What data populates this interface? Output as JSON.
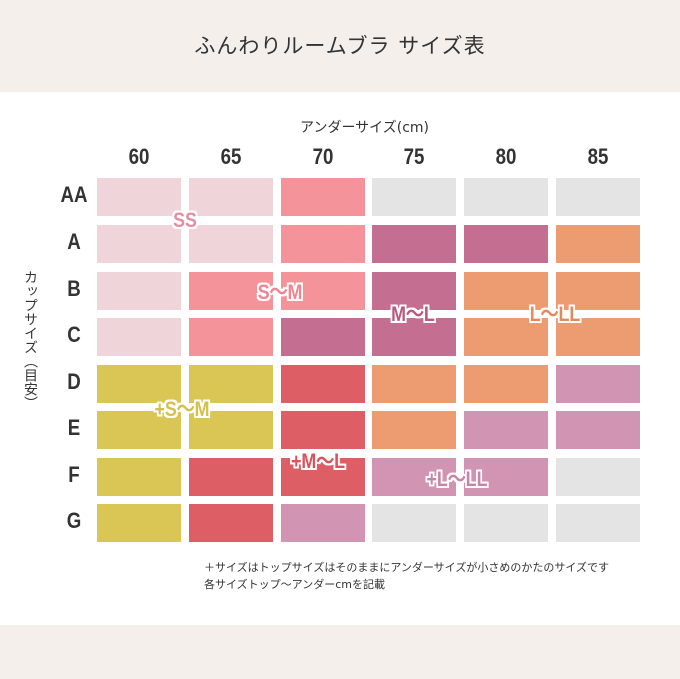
{
  "title": "ふんわりルームブラ サイズ表",
  "under_label": "アンダーサイズ(cm)",
  "cup_label": "カップサイズ（目安）",
  "columns": [
    "60",
    "65",
    "70",
    "75",
    "80",
    "85"
  ],
  "rows": [
    "AA",
    "A",
    "B",
    "C",
    "D",
    "E",
    "F",
    "G"
  ],
  "colors": {
    "SS": "#efd5da",
    "S-M": "#f4939a",
    "M-L": "#c46f92",
    "L-LL": "#ed9b70",
    "+S-M": "#d9c654",
    "+M-L": "#de5e66",
    "+L-LL": "#d194b3",
    "none": "#e4e4e4"
  },
  "grid": [
    [
      "SS",
      "SS",
      "S-M",
      "none",
      "none",
      "none"
    ],
    [
      "SS",
      "SS",
      "S-M",
      "M-L",
      "M-L",
      "L-LL"
    ],
    [
      "SS",
      "S-M",
      "S-M",
      "M-L",
      "L-LL",
      "L-LL"
    ],
    [
      "SS",
      "S-M",
      "M-L",
      "M-L",
      "L-LL",
      "L-LL"
    ],
    [
      "+S-M",
      "+S-M",
      "+M-L",
      "L-LL",
      "L-LL",
      "+L-LL"
    ],
    [
      "+S-M",
      "+S-M",
      "+M-L",
      "L-LL",
      "+L-LL",
      "+L-LL"
    ],
    [
      "+S-M",
      "+M-L",
      "+M-L",
      "+L-LL",
      "+L-LL",
      "none"
    ],
    [
      "+S-M",
      "+M-L",
      "+L-LL",
      "none",
      "none",
      "none"
    ]
  ],
  "labels": [
    {
      "key": "SS",
      "text": "SS",
      "color": "#e38ea2"
    },
    {
      "key": "S-M",
      "text": "S〜M",
      "color": "#f08390"
    },
    {
      "key": "M-L",
      "text": "M〜L",
      "color": "#b9597f"
    },
    {
      "key": "L-LL",
      "text": "L〜LL",
      "color": "#e3895e"
    },
    {
      "key": "+S-M",
      "text": "+S〜M",
      "color": "#d4c04a"
    },
    {
      "key": "+M-L",
      "text": "+M〜L",
      "color": "#dc525c"
    },
    {
      "key": "+L-LL",
      "text": "+L〜LL",
      "color": "#c983a8"
    }
  ],
  "notes": [
    "＋サイズはトップサイズはそのままにアンダーサイズが小さめのかたのサイズです",
    "各サイズトップ〜アンダーcmを記載"
  ]
}
